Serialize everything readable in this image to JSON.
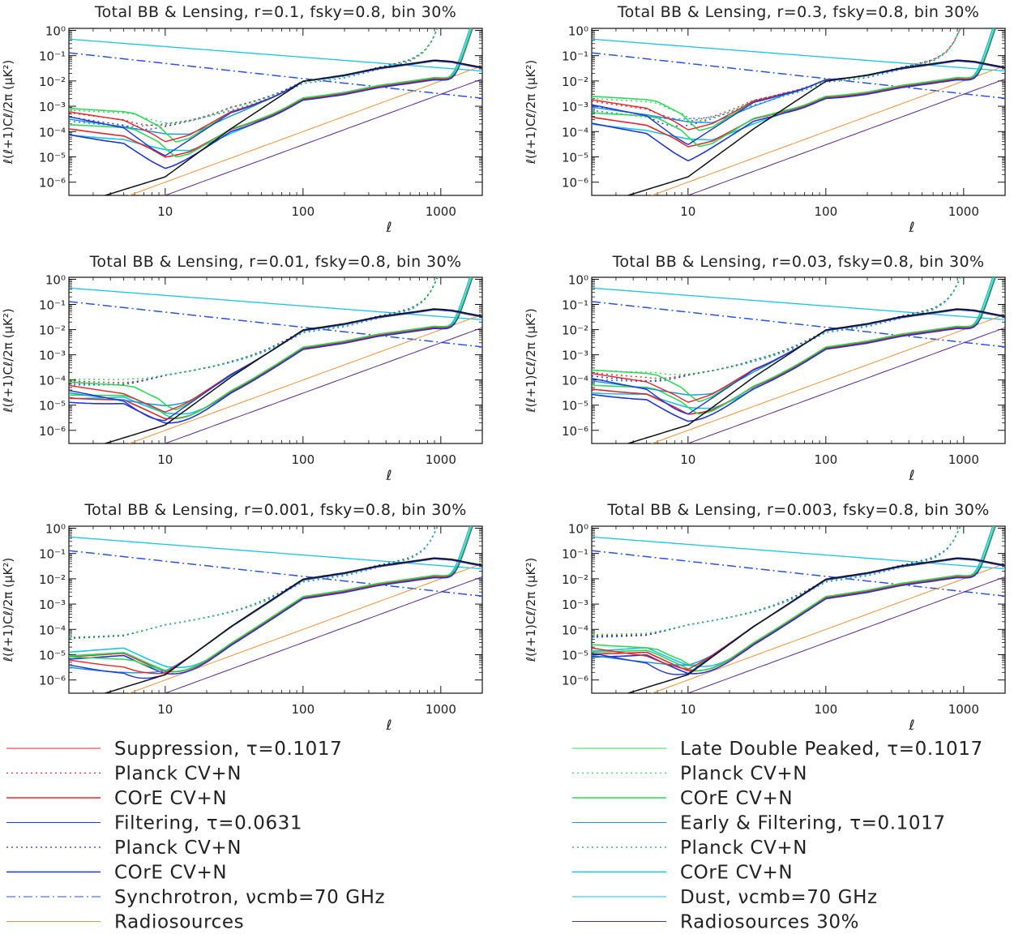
{
  "axis_text": {
    "ylabel": "ℓ(ℓ+1)Cℓ/2π (μK²)",
    "xlabel": "ℓ",
    "xticks": [
      "10",
      "100",
      "1000"
    ],
    "yticks": [
      "10⁰",
      "10⁻¹",
      "10⁻²",
      "10⁻³",
      "10⁻⁴",
      "10⁻⁵",
      "10⁻⁶"
    ]
  },
  "colors": {
    "suppression": "#e8242b",
    "filtering": "#1f35d6",
    "late_double": "#2fd85a",
    "early_filtering": "#1a8fe0",
    "dust": "#19c3e3",
    "synchrotron": "#2a52e0",
    "radiosources": "#f0923a",
    "radiosources30": "#5b2a8f",
    "lensing": "#111111"
  },
  "chart_data": [
    {
      "type": "line",
      "title": "Total BB & Lensing, r=0.1, fsky=0.8, bin 30%",
      "xlabel": "ℓ",
      "ylabel": "ℓ(ℓ+1)Cℓ/2π (μK²)",
      "x_scale": "log",
      "y_scale": "log",
      "xlim": [
        2,
        2000
      ],
      "ylim": [
        3e-07,
        1.2
      ],
      "r": 0.1
    },
    {
      "type": "line",
      "title": "Total BB & Lensing, r=0.3, fsky=0.8, bin 30%",
      "xlabel": "ℓ",
      "ylabel": "ℓ(ℓ+1)Cℓ/2π (μK²)",
      "x_scale": "log",
      "y_scale": "log",
      "xlim": [
        2,
        2000
      ],
      "ylim": [
        3e-07,
        1.2
      ],
      "r": 0.3
    },
    {
      "type": "line",
      "title": "Total BB & Lensing, r=0.01, fsky=0.8, bin 30%",
      "xlabel": "ℓ",
      "ylabel": "ℓ(ℓ+1)Cℓ/2π (μK²)",
      "x_scale": "log",
      "y_scale": "log",
      "xlim": [
        2,
        2000
      ],
      "ylim": [
        3e-07,
        1.2
      ],
      "r": 0.01
    },
    {
      "type": "line",
      "title": "Total BB & Lensing, r=0.03, fsky=0.8, bin 30%",
      "xlabel": "ℓ",
      "ylabel": "ℓ(ℓ+1)Cℓ/2π (μK²)",
      "x_scale": "log",
      "y_scale": "log",
      "xlim": [
        2,
        2000
      ],
      "ylim": [
        3e-07,
        1.2
      ],
      "r": 0.03
    },
    {
      "type": "line",
      "title": "Total BB & Lensing, r=0.001, fsky=0.8, bin 30%",
      "xlabel": "ℓ",
      "ylabel": "ℓ(ℓ+1)Cℓ/2π (μK²)",
      "x_scale": "log",
      "y_scale": "log",
      "xlim": [
        2,
        2000
      ],
      "ylim": [
        3e-07,
        1.2
      ],
      "r": 0.001
    },
    {
      "type": "line",
      "title": "Total BB & Lensing, r=0.003, fsky=0.8, bin 30%",
      "xlabel": "ℓ",
      "ylabel": "ℓ(ℓ+1)Cℓ/2π (μK²)",
      "x_scale": "log",
      "y_scale": "log",
      "xlim": [
        2,
        2000
      ],
      "ylim": [
        3e-07,
        1.2
      ],
      "r": 0.003
    }
  ],
  "legend": {
    "left": [
      {
        "label": "Suppression, τ=0.1017",
        "color": "#e8242b",
        "style": "solid",
        "width": 1
      },
      {
        "label": "Planck CV+N",
        "color": "#e8242b",
        "style": "dotted",
        "width": 1.2
      },
      {
        "label": "COrE CV+N",
        "color": "#e8242b",
        "style": "solid",
        "width": 1.6
      },
      {
        "label": "Filtering, τ=0.0631",
        "color": "#1f35d6",
        "style": "solid",
        "width": 1
      },
      {
        "label": "Planck CV+N",
        "color": "#1f35d6",
        "style": "dotted",
        "width": 1.2
      },
      {
        "label": "COrE CV+N",
        "color": "#1f35d6",
        "style": "solid",
        "width": 1.6
      },
      {
        "label": "Synchrotron, νcmb=70 GHz",
        "color": "#2a52e0",
        "style": "dashdot",
        "width": 1
      },
      {
        "label": "Radiosources",
        "color": "#f0923a",
        "style": "solid",
        "width": 1
      }
    ],
    "right": [
      {
        "label": "Late Double Peaked, τ=0.1017",
        "color": "#2fd85a",
        "style": "solid",
        "width": 1
      },
      {
        "label": "Planck CV+N",
        "color": "#2fd85a",
        "style": "dotted",
        "width": 1.2
      },
      {
        "label": "COrE CV+N",
        "color": "#2fd85a",
        "style": "solid",
        "width": 1.6
      },
      {
        "label": "Early & Filtering, τ=0.1017",
        "color": "#1a8fe0",
        "style": "solid",
        "width": 1
      },
      {
        "label": "Planck CV+N",
        "color": "#1a8fe0",
        "style": "dotted",
        "width": 1.2
      },
      {
        "label": "COrE CV+N",
        "color": "#19c3e3",
        "style": "solid",
        "width": 1.6
      },
      {
        "label": "Dust, νcmb=70 GHz",
        "color": "#19c3e3",
        "style": "solid",
        "width": 1
      },
      {
        "label": "Radiosources 30%",
        "color": "#5b2a8f",
        "style": "solid",
        "width": 1
      }
    ]
  }
}
